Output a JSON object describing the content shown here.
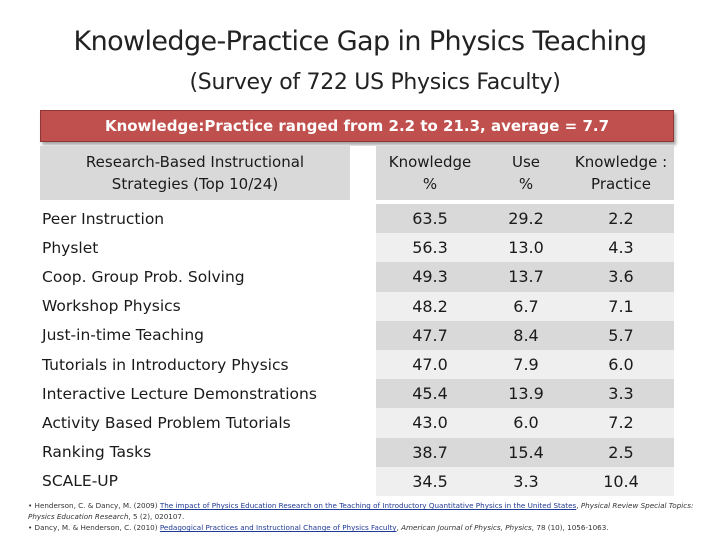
{
  "slide": {
    "title": "Knowledge-Practice Gap in Physics Teaching",
    "subtitle": "(Survey of 722 US Physics Faculty)",
    "banner": "Knowledge:Practice ranged from 2.2 to 21.3, average = 7.7"
  },
  "table": {
    "headers": {
      "strategy_line1": "Research-Based Instructional",
      "strategy_line2": "Strategies (Top 10/24)",
      "knowledge_line1": "Knowledge",
      "knowledge_line2": "%",
      "use_line1": "Use",
      "use_line2": "%",
      "ratio_line1": "Knowledge :",
      "ratio_line2": "Practice"
    },
    "rows": [
      {
        "strategy": "Peer Instruction",
        "knowledge": "63.5",
        "use": "29.2",
        "ratio": "2.2"
      },
      {
        "strategy": "Physlet",
        "knowledge": "56.3",
        "use": "13.0",
        "ratio": "4.3"
      },
      {
        "strategy": "Coop. Group Prob. Solving",
        "knowledge": "49.3",
        "use": "13.7",
        "ratio": "3.6"
      },
      {
        "strategy": "Workshop Physics",
        "knowledge": "48.2",
        "use": "6.7",
        "ratio": "7.1"
      },
      {
        "strategy": "Just-in-time Teaching",
        "knowledge": "47.7",
        "use": "8.4",
        "ratio": "5.7"
      },
      {
        "strategy": "Tutorials in Introductory Physics",
        "knowledge": "47.0",
        "use": "7.9",
        "ratio": "6.0"
      },
      {
        "strategy": "Interactive Lecture Demonstrations",
        "knowledge": "45.4",
        "use": "13.9",
        "ratio": "3.3"
      },
      {
        "strategy": "Activity Based Problem Tutorials",
        "knowledge": "43.0",
        "use": "6.0",
        "ratio": "7.2"
      },
      {
        "strategy": "Ranking Tasks",
        "knowledge": "38.7",
        "use": "15.4",
        "ratio": "2.5"
      },
      {
        "strategy": "SCALE-UP",
        "knowledge": "34.5",
        "use": "3.3",
        "ratio": "10.4"
      }
    ]
  },
  "references": {
    "ref1_bullet": "•",
    "ref1_authors": "Henderson, C. & Dancy, M. (2009)",
    "ref1_title": "The impact of Physics Education Research on the Teaching of Introductory Quantitative Physics in the United States",
    "ref1_journal": "Physical Review Special Topics: Physics Education Research",
    "ref1_tail": ", 5 (2), 020107.",
    "ref2_bullet": "•",
    "ref2_authors": "Dancy, M. & Henderson, C. (2010)",
    "ref2_title": "Pedagogical Practices and Instructional Change of Physics Faculty",
    "ref2_journal": "American Journal of Physics, Physics",
    "ref2_tail": ", 78 (10), 1056-1063."
  }
}
